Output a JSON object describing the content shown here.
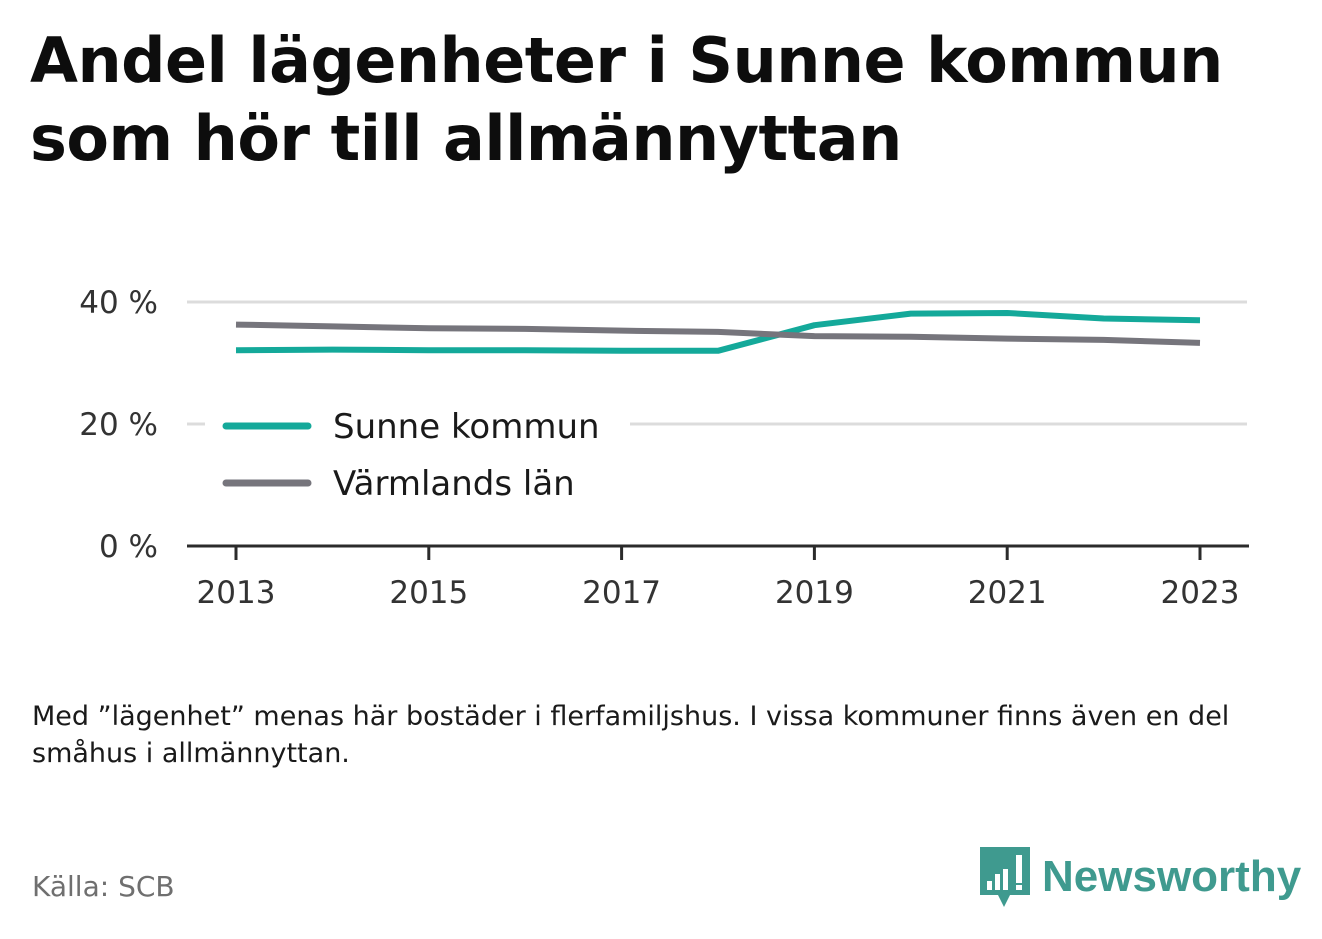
{
  "title": "Andel lägenheter i Sunne kommun som hör till allmännyttan",
  "note": "Med ”lägenhet” menas här bostäder i flerfamiljshus. I vissa kommuner finns även en del småhus i allmännyttan.",
  "source": "Källa: SCB",
  "brand": {
    "name": "Newsworthy",
    "color": "#3f9a8f",
    "icon": "bar-chart-speech-bubble-icon"
  },
  "chart_data": {
    "type": "line",
    "x": [
      2013,
      2014,
      2015,
      2016,
      2017,
      2018,
      2019,
      2020,
      2021,
      2022,
      2023
    ],
    "xticks": [
      "2013",
      "2015",
      "2017",
      "2019",
      "2021",
      "2023"
    ],
    "yticks": [
      "0 %",
      "20 %",
      "40 %"
    ],
    "ylim": [
      0,
      40
    ],
    "grid": true,
    "legend_position": "left",
    "series": [
      {
        "name": "Sunne kommun",
        "color": "#14a99a",
        "values": [
          32.1,
          32.2,
          32.1,
          32.1,
          32.0,
          32.0,
          36.2,
          38.1,
          38.2,
          37.3,
          37.0
        ]
      },
      {
        "name": "Värmlands län",
        "color": "#76757c",
        "values": [
          36.3,
          36.0,
          35.7,
          35.6,
          35.3,
          35.1,
          34.4,
          34.3,
          34.0,
          33.8,
          33.3
        ]
      }
    ]
  }
}
